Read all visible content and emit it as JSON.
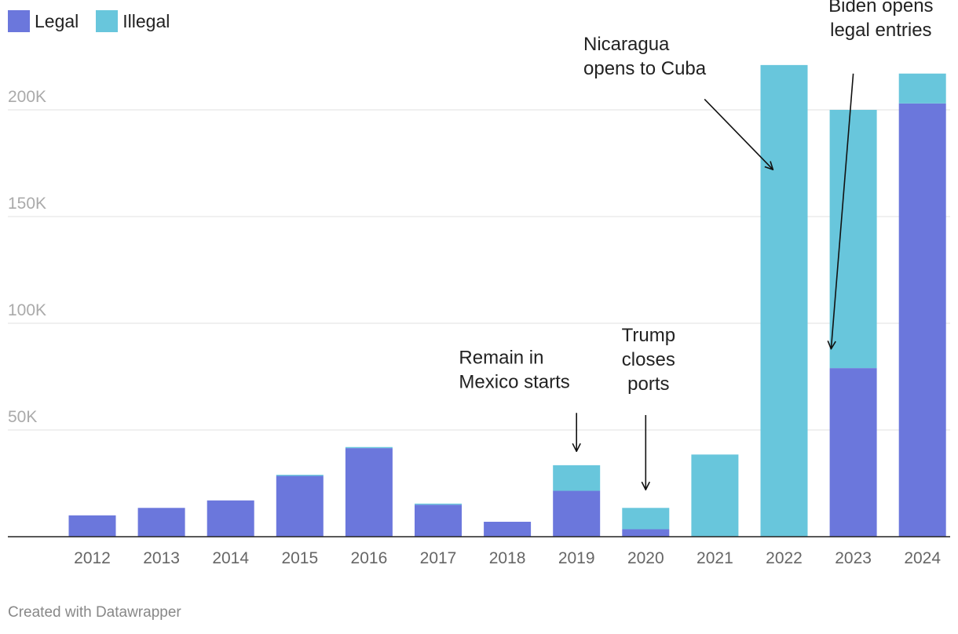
{
  "legend": {
    "items": [
      {
        "label": "Legal",
        "color": "#6b77dc"
      },
      {
        "label": "Illegal",
        "color": "#68c6dc"
      }
    ]
  },
  "chart_data": {
    "type": "bar",
    "stacked": true,
    "title": "",
    "xlabel": "",
    "ylabel": "",
    "ylim": [
      0,
      225000
    ],
    "y_ticks": [
      {
        "value": 50000,
        "label": "50K"
      },
      {
        "value": 100000,
        "label": "100K"
      },
      {
        "value": 150000,
        "label": "150K"
      },
      {
        "value": 200000,
        "label": "200K"
      }
    ],
    "categories": [
      "2012",
      "2013",
      "2014",
      "2015",
      "2016",
      "2017",
      "2018",
      "2019",
      "2020",
      "2021",
      "2022",
      "2023",
      "2024"
    ],
    "series": [
      {
        "name": "Legal",
        "color": "#6b77dc",
        "values": [
          10000,
          13500,
          17000,
          28500,
          41500,
          15000,
          7000,
          21500,
          3500,
          0,
          0,
          79000,
          203000
        ]
      },
      {
        "name": "Illegal",
        "color": "#68c6dc",
        "values": [
          0,
          0,
          0,
          500,
          500,
          500,
          0,
          12000,
          10000,
          38500,
          221000,
          121000,
          14000
        ]
      }
    ],
    "annotations": [
      {
        "lines": [
          "Remain in",
          "Mexico starts"
        ],
        "align": "start",
        "text_x": "2019",
        "text_offset": -1.7,
        "text_top_value": 81000,
        "arrow_x": "2019",
        "arrow_from_value": 58000,
        "arrow_to_value": 40000
      },
      {
        "lines": [
          "Trump",
          "closes",
          "ports"
        ],
        "align": "middle",
        "text_x": "2020",
        "text_offset": 0.04,
        "text_top_value": 91500,
        "arrow_x": "2020",
        "arrow_from_value": 57000,
        "arrow_to_value": 22000
      },
      {
        "lines": [
          "Nicaragua",
          "opens to Cuba"
        ],
        "align": "start",
        "text_x": "2022",
        "text_offset": -2.9,
        "text_top_value": 228000,
        "arrow_x_from": "2022",
        "arrow_from_offset": -1.15,
        "arrow_from_value": 205000,
        "arrow_x": "2022",
        "arrow_to_offset": -0.16,
        "arrow_to_value": 172000
      },
      {
        "lines": [
          "Biden opens",
          "legal entries"
        ],
        "align": "middle",
        "text_x": "2023",
        "text_offset": 0.4,
        "text_top_value": 246000,
        "arrow_x": "2023",
        "arrow_to_offset": -0.32,
        "arrow_from_value": 217000,
        "arrow_to_value": 88000
      }
    ]
  },
  "footer": {
    "credit": "Created with Datawrapper"
  }
}
